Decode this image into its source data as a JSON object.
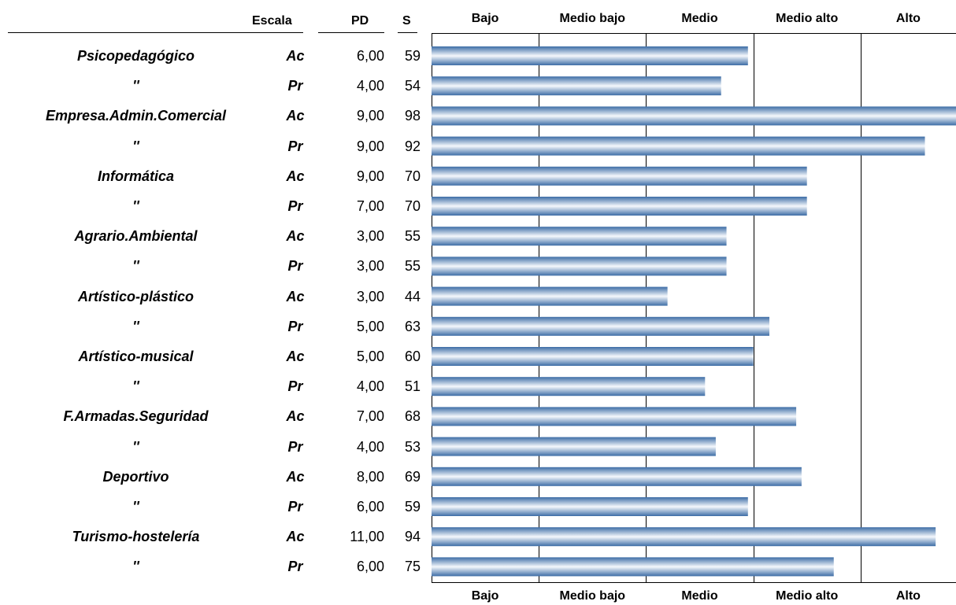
{
  "headers": {
    "escala": "Escala",
    "pd": "PD",
    "s": "S"
  },
  "chart_data": {
    "type": "bar",
    "orientation": "horizontal",
    "title": "",
    "xlim": [
      0,
      100
    ],
    "category_bands": [
      "Bajo",
      "Medio bajo",
      "Medio",
      "Medio alto",
      "Alto"
    ],
    "band_edges": [
      0,
      20,
      40,
      60,
      80,
      100
    ],
    "rows": [
      {
        "scale": "Psicopedagógico",
        "type": "Ac",
        "pd": "6,00",
        "s": "59",
        "value": 59
      },
      {
        "scale": "''",
        "type": "Pr",
        "pd": "4,00",
        "s": "54",
        "value": 54
      },
      {
        "scale": "Empresa.Admin.Comercial",
        "type": "Ac",
        "pd": "9,00",
        "s": "98",
        "value": 98
      },
      {
        "scale": "''",
        "type": "Pr",
        "pd": "9,00",
        "s": "92",
        "value": 92
      },
      {
        "scale": "Informática",
        "type": "Ac",
        "pd": "9,00",
        "s": "70",
        "value": 70
      },
      {
        "scale": "''",
        "type": "Pr",
        "pd": "7,00",
        "s": "70",
        "value": 70
      },
      {
        "scale": "Agrario.Ambiental",
        "type": "Ac",
        "pd": "3,00",
        "s": "55",
        "value": 55
      },
      {
        "scale": "''",
        "type": "Pr",
        "pd": "3,00",
        "s": "55",
        "value": 55
      },
      {
        "scale": "Artístico-plástico",
        "type": "Ac",
        "pd": "3,00",
        "s": "44",
        "value": 44
      },
      {
        "scale": "''",
        "type": "Pr",
        "pd": "5,00",
        "s": "63",
        "value": 63
      },
      {
        "scale": "Artístico-musical",
        "type": "Ac",
        "pd": "5,00",
        "s": "60",
        "value": 60
      },
      {
        "scale": "''",
        "type": "Pr",
        "pd": "4,00",
        "s": "51",
        "value": 51
      },
      {
        "scale": "F.Armadas.Seguridad",
        "type": "Ac",
        "pd": "7,00",
        "s": "68",
        "value": 68
      },
      {
        "scale": "''",
        "type": "Pr",
        "pd": "4,00",
        "s": "53",
        "value": 53
      },
      {
        "scale": "Deportivo",
        "type": "Ac",
        "pd": "8,00",
        "s": "69",
        "value": 69
      },
      {
        "scale": "''",
        "type": "Pr",
        "pd": "6,00",
        "s": "59",
        "value": 59
      },
      {
        "scale": "Turismo-hostelería",
        "type": "Ac",
        "pd": "11,00",
        "s": "94",
        "value": 94
      },
      {
        "scale": "''",
        "type": "Pr",
        "pd": "6,00",
        "s": "75",
        "value": 75
      }
    ],
    "colors": {
      "bar_dark": "#3d6da6",
      "bar_light": "#f5f8fc",
      "gridline": "#000000"
    },
    "grid": true
  }
}
